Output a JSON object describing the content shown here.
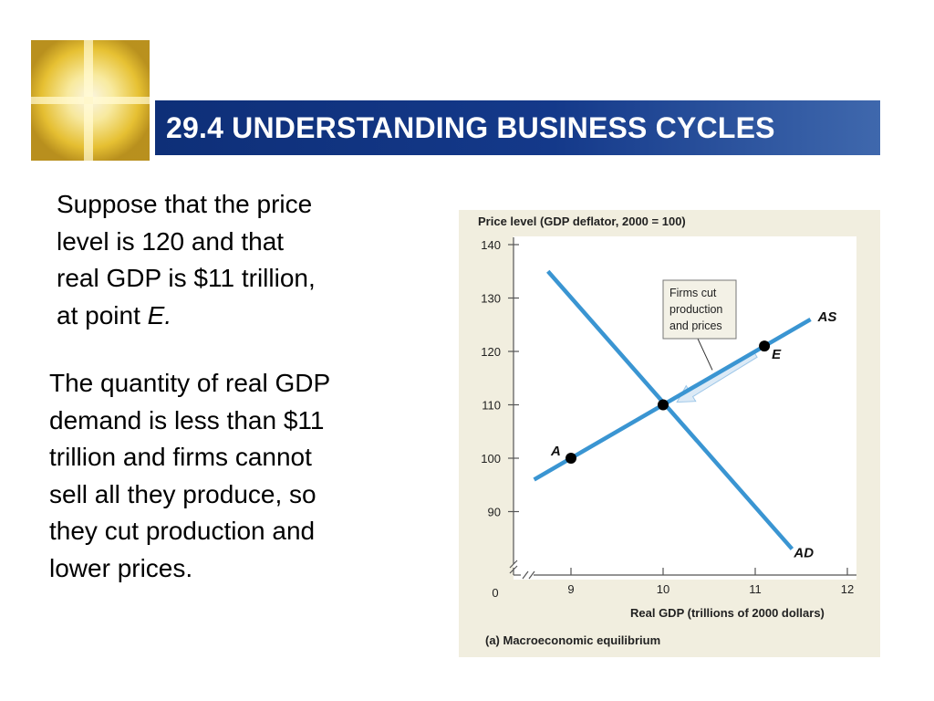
{
  "slide": {
    "title": "29.4 UNDERSTANDING BUSINESS CYCLES",
    "paragraph1": {
      "line1": "Suppose that the price",
      "line2": "level is 120 and that",
      "line3": "real GDP is $11 trillion,",
      "line4_prefix": "at point ",
      "line4_italic": "E."
    },
    "paragraph2": {
      "lines": [
        "The quantity of real GDP",
        "demand is less than $11",
        "trillion and firms cannot",
        "sell all they produce, so",
        "they cut production and",
        "lower prices."
      ]
    }
  },
  "colors": {
    "title_bar": "#14398a",
    "curve_blue": "#3a95d2",
    "figure_bg": "#f1eedf",
    "arrow_fill": "#dceaf6"
  },
  "icons": {
    "logo": "golden-window-logo-icon"
  },
  "chart_data": {
    "type": "line",
    "title": "Price level (GDP deflator, 2000 = 100)",
    "xlabel": "Real GDP (trillions of 2000 dollars)",
    "ylabel": "Price level (GDP deflator, 2000 = 100)",
    "caption": "(a)  Macroeconomic equilibrium",
    "origin_label": "0",
    "x_ticks": [
      "9",
      "10",
      "11",
      "12"
    ],
    "y_ticks": [
      "90",
      "100",
      "110",
      "120",
      "130",
      "140"
    ],
    "xlim": [
      8.3,
      12.1
    ],
    "ylim": [
      76,
      141
    ],
    "grid": false,
    "series": [
      {
        "name": "AS",
        "x": [
          8.6,
          11.6
        ],
        "y": [
          96,
          126
        ]
      },
      {
        "name": "AD",
        "x": [
          8.75,
          11.4
        ],
        "y": [
          135,
          83
        ]
      }
    ],
    "points": [
      {
        "label": "A",
        "x": 9.0,
        "y": 100
      },
      {
        "label": "",
        "x": 10.0,
        "y": 110
      },
      {
        "label": "E",
        "x": 11.1,
        "y": 121
      }
    ],
    "annotation": {
      "lines": [
        "Firms cut",
        "production",
        "and prices"
      ],
      "arrow_from": {
        "x": 11.0,
        "y": 119.5
      },
      "arrow_to": {
        "x": 10.15,
        "y": 110.5
      }
    }
  }
}
